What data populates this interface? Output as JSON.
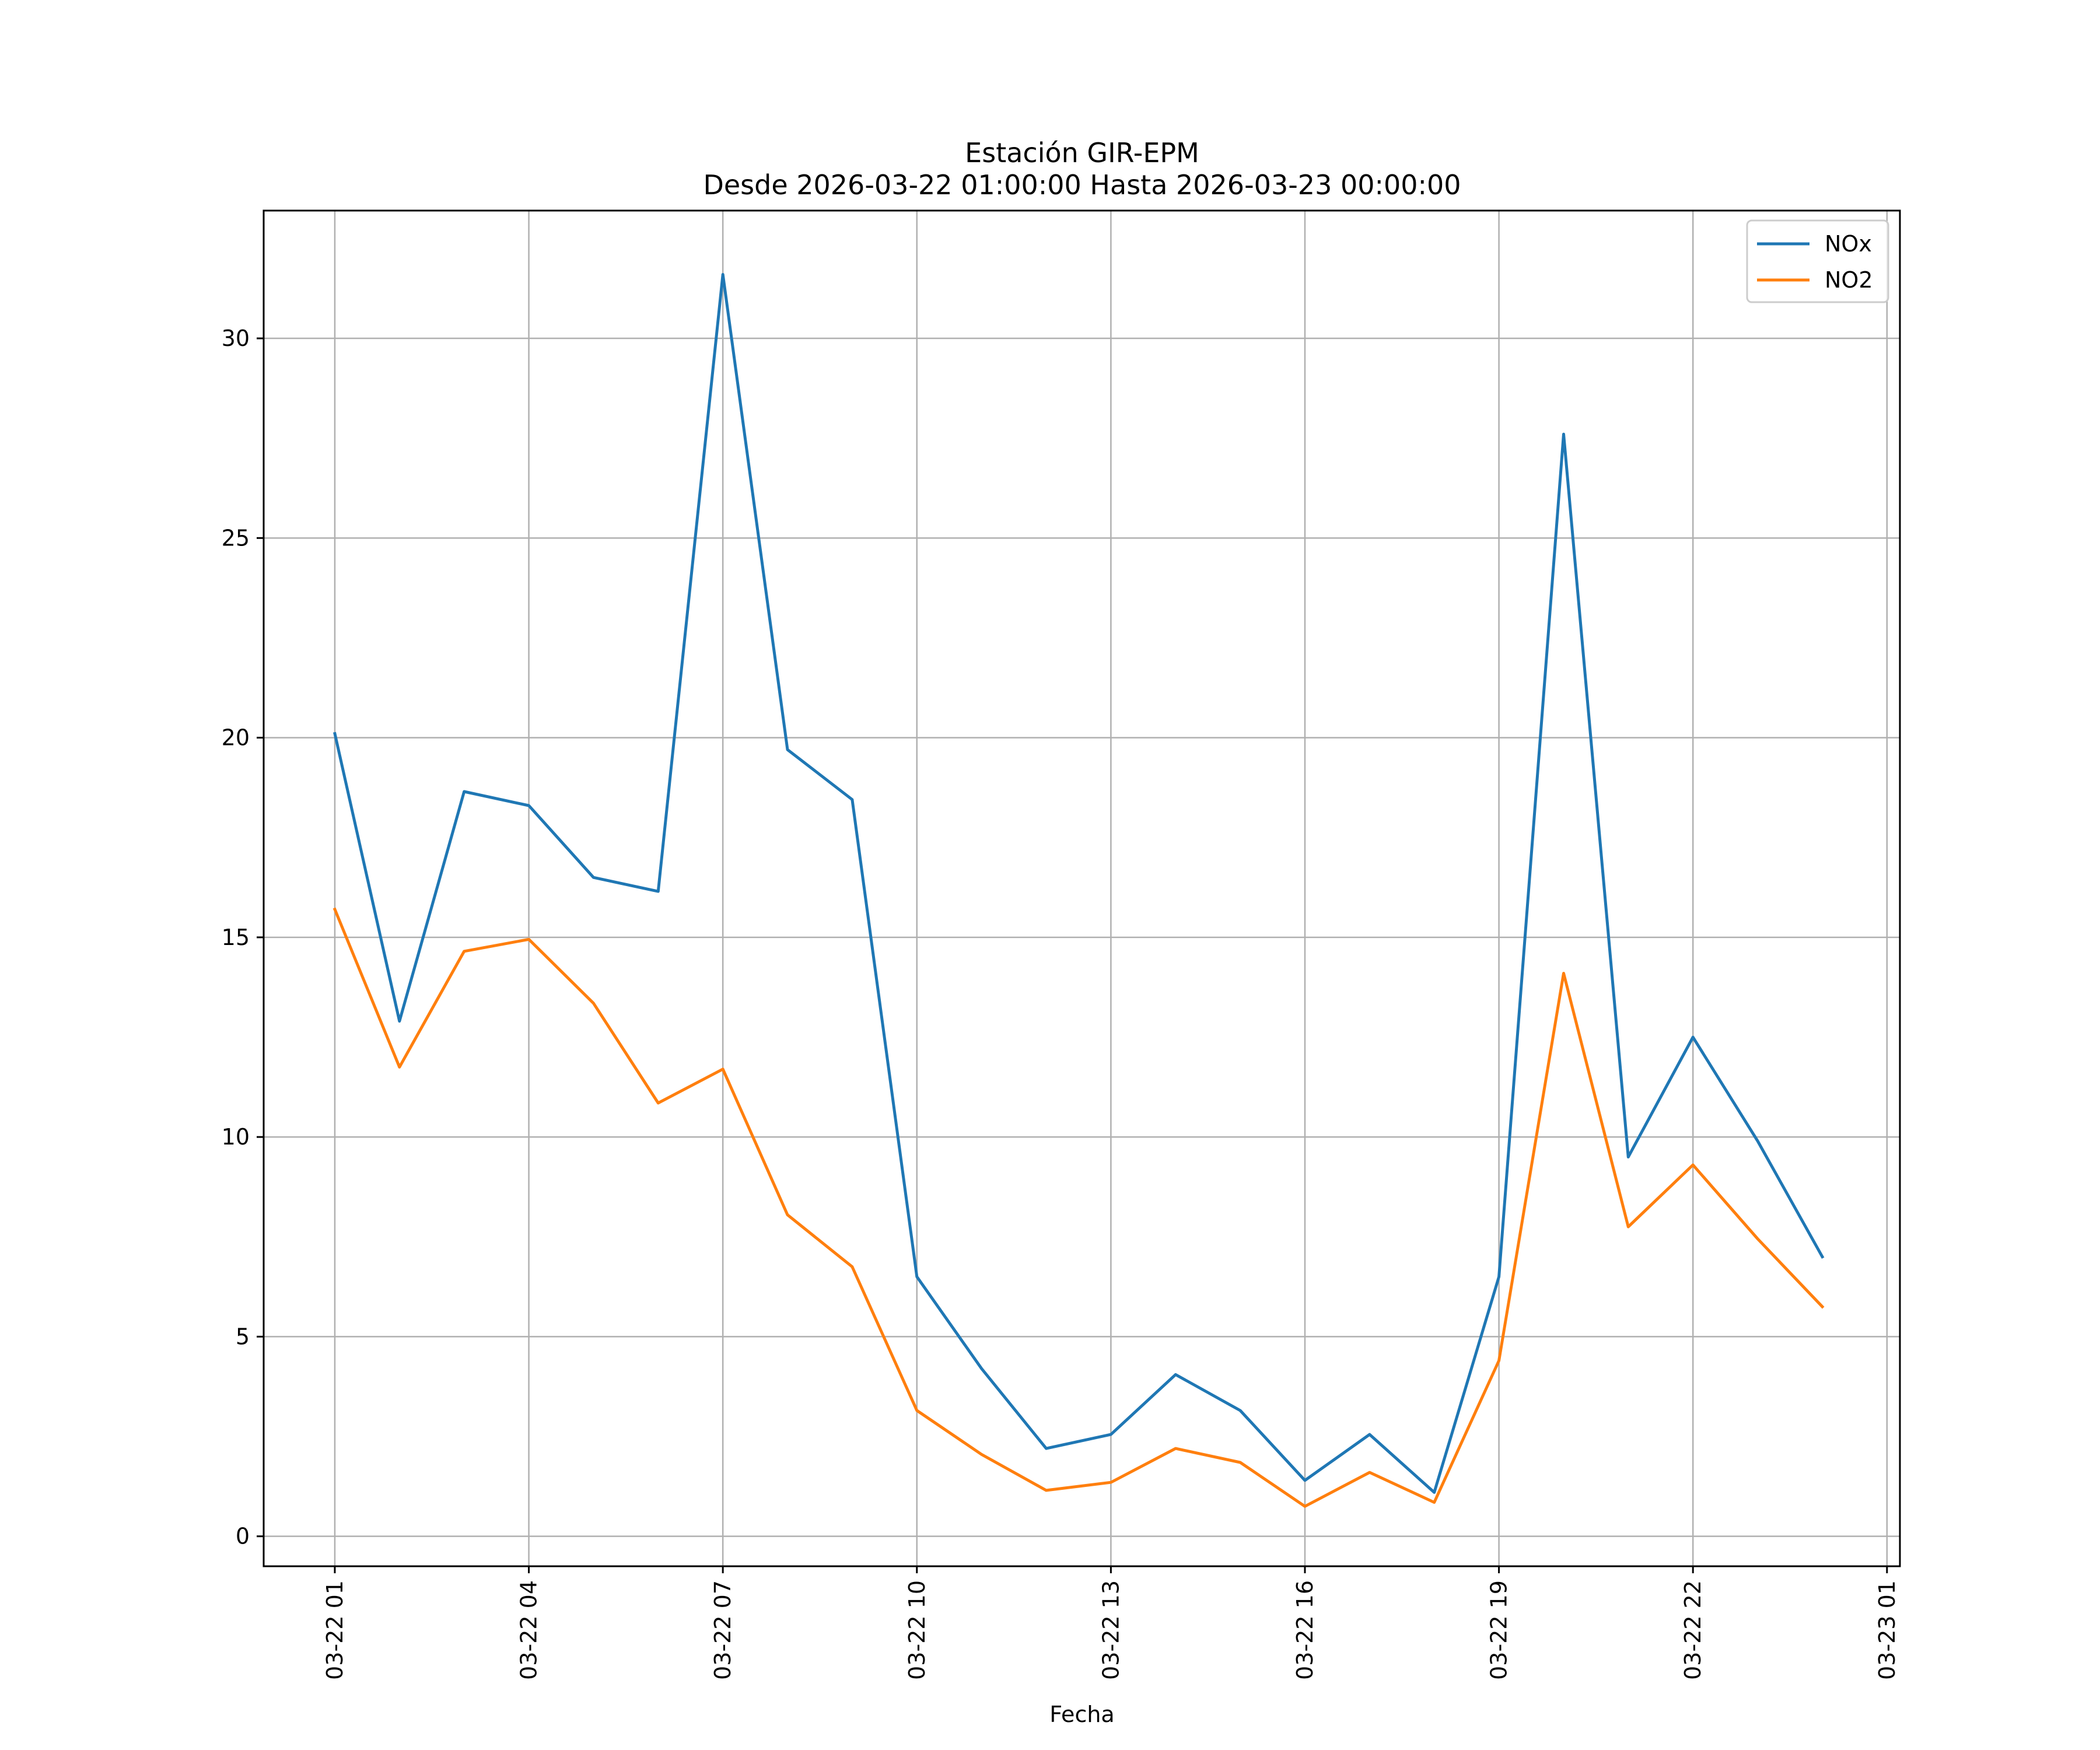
{
  "chart_data": {
    "type": "line",
    "title": "Estación GIR-EPM",
    "subtitle": "Desde 2026-03-22 01:00:00 Hasta 2026-03-23 00:00:00",
    "xlabel": "Fecha",
    "ylabel": "",
    "x_hours": [
      1,
      2,
      3,
      4,
      5,
      6,
      7,
      8,
      9,
      10,
      11,
      12,
      13,
      14,
      15,
      16,
      17,
      18,
      19,
      20,
      21,
      22,
      23,
      24
    ],
    "xlim": [
      -0.1,
      25.2
    ],
    "ylim": [
      -0.75,
      33.2
    ],
    "grid": true,
    "legend_position": "upper right",
    "x_ticks": [
      {
        "hour": 1,
        "label": "03-22 01"
      },
      {
        "hour": 4,
        "label": "03-22 04"
      },
      {
        "hour": 7,
        "label": "03-22 07"
      },
      {
        "hour": 10,
        "label": "03-22 10"
      },
      {
        "hour": 13,
        "label": "03-22 13"
      },
      {
        "hour": 16,
        "label": "03-22 16"
      },
      {
        "hour": 19,
        "label": "03-22 19"
      },
      {
        "hour": 22,
        "label": "03-22 22"
      },
      {
        "hour": 25,
        "label": "03-23 01"
      }
    ],
    "y_ticks": [
      {
        "value": 0,
        "label": "0"
      },
      {
        "value": 5,
        "label": "5"
      },
      {
        "value": 10,
        "label": "10"
      },
      {
        "value": 15,
        "label": "15"
      },
      {
        "value": 20,
        "label": "20"
      },
      {
        "value": 25,
        "label": "25"
      },
      {
        "value": 30,
        "label": "30"
      }
    ],
    "series": [
      {
        "name": "NOx",
        "color": "#1f77b4",
        "values": [
          20.1,
          12.9,
          18.65,
          18.3,
          16.5,
          16.15,
          31.6,
          19.7,
          18.45,
          6.5,
          4.2,
          2.2,
          2.55,
          4.05,
          3.15,
          1.4,
          2.55,
          1.1,
          6.5,
          27.6,
          9.5,
          12.5,
          9.9,
          7.0
        ]
      },
      {
        "name": "NO2",
        "color": "#ff7f0e",
        "values": [
          15.7,
          11.75,
          14.65,
          14.95,
          13.35,
          10.85,
          11.7,
          8.05,
          6.75,
          3.15,
          2.05,
          1.15,
          1.35,
          2.2,
          1.85,
          0.75,
          1.6,
          0.85,
          4.4,
          14.1,
          7.75,
          9.3,
          7.45,
          5.75
        ]
      }
    ]
  }
}
